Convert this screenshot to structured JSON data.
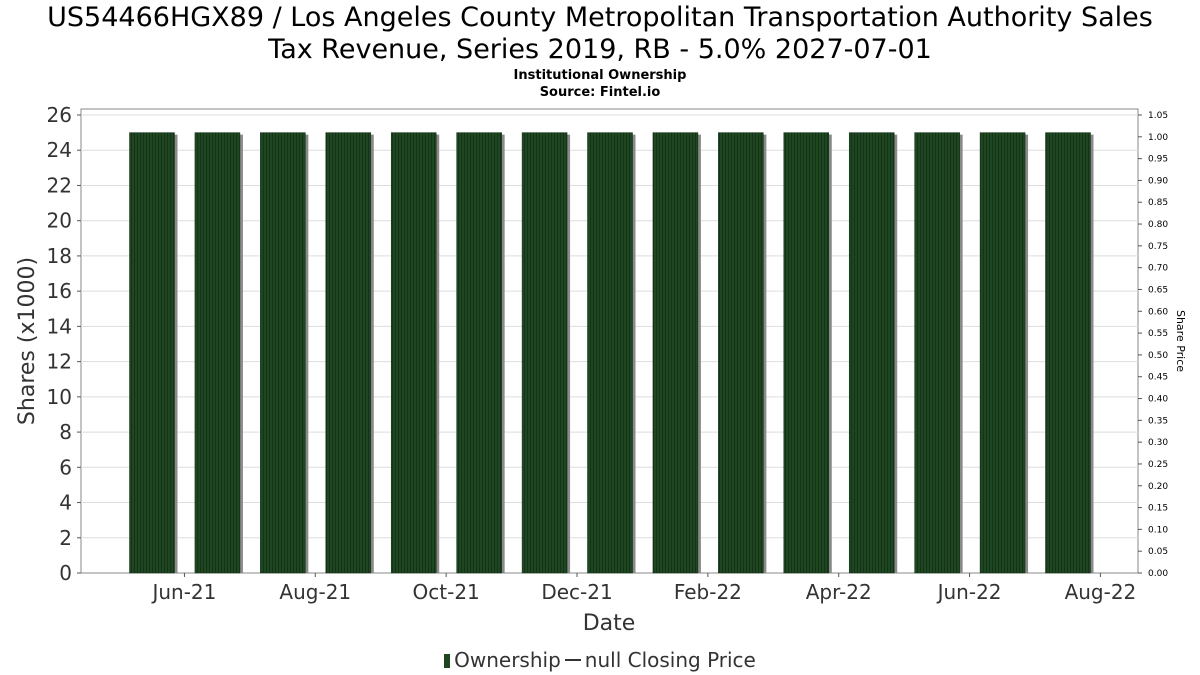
{
  "title": {
    "line1": "US54466HGX89 / Los Angeles County Metropolitan Transportation Authority Sales",
    "line2": "Tax Revenue, Series 2019, RB - 5.0% 2027-07-01"
  },
  "subtitle": {
    "line1": "Institutional Ownership",
    "line2": "Source: Fintel.io"
  },
  "legend": {
    "ownership": "Ownership",
    "price": "null Closing Price"
  },
  "colors": {
    "bar": "#1e4620",
    "bar_shadow": "#8a8a8a",
    "grid": "#dddddd",
    "axis": "#555555"
  },
  "chart_data": {
    "type": "bar",
    "title": "Institutional Ownership",
    "xlabel": "Date",
    "ylabel": "Shares (x1000)",
    "y2label": "Share Price",
    "ylim": [
      0,
      26
    ],
    "y2lim": [
      0,
      1.05
    ],
    "yticks": [
      0,
      2,
      4,
      6,
      8,
      10,
      12,
      14,
      16,
      18,
      20,
      22,
      24,
      26
    ],
    "y2ticks": [
      "0.00",
      "0.05",
      "0.10",
      "0.15",
      "0.20",
      "0.25",
      "0.30",
      "0.35",
      "0.40",
      "0.45",
      "0.50",
      "0.55",
      "0.60",
      "0.65",
      "0.70",
      "0.75",
      "0.80",
      "0.85",
      "0.90",
      "0.95",
      "1.00",
      "1.05"
    ],
    "xticks": [
      "Jun-21",
      "Aug-21",
      "Oct-21",
      "Dec-21",
      "Feb-22",
      "Apr-22",
      "Jun-22",
      "Aug-22"
    ],
    "categories": [
      "2021-05-31",
      "2021-06-30",
      "2021-07-31",
      "2021-08-31",
      "2021-09-30",
      "2021-10-31",
      "2021-11-30",
      "2021-12-31",
      "2022-01-31",
      "2022-02-28",
      "2022-03-31",
      "2022-04-30",
      "2022-05-31",
      "2022-06-30",
      "2022-07-31"
    ],
    "series": [
      {
        "name": "Ownership",
        "values": [
          25,
          25,
          25,
          25,
          25,
          25,
          25,
          25,
          25,
          25,
          25,
          25,
          25,
          25,
          25
        ]
      }
    ],
    "grid": true,
    "legend_position": "bottom"
  }
}
